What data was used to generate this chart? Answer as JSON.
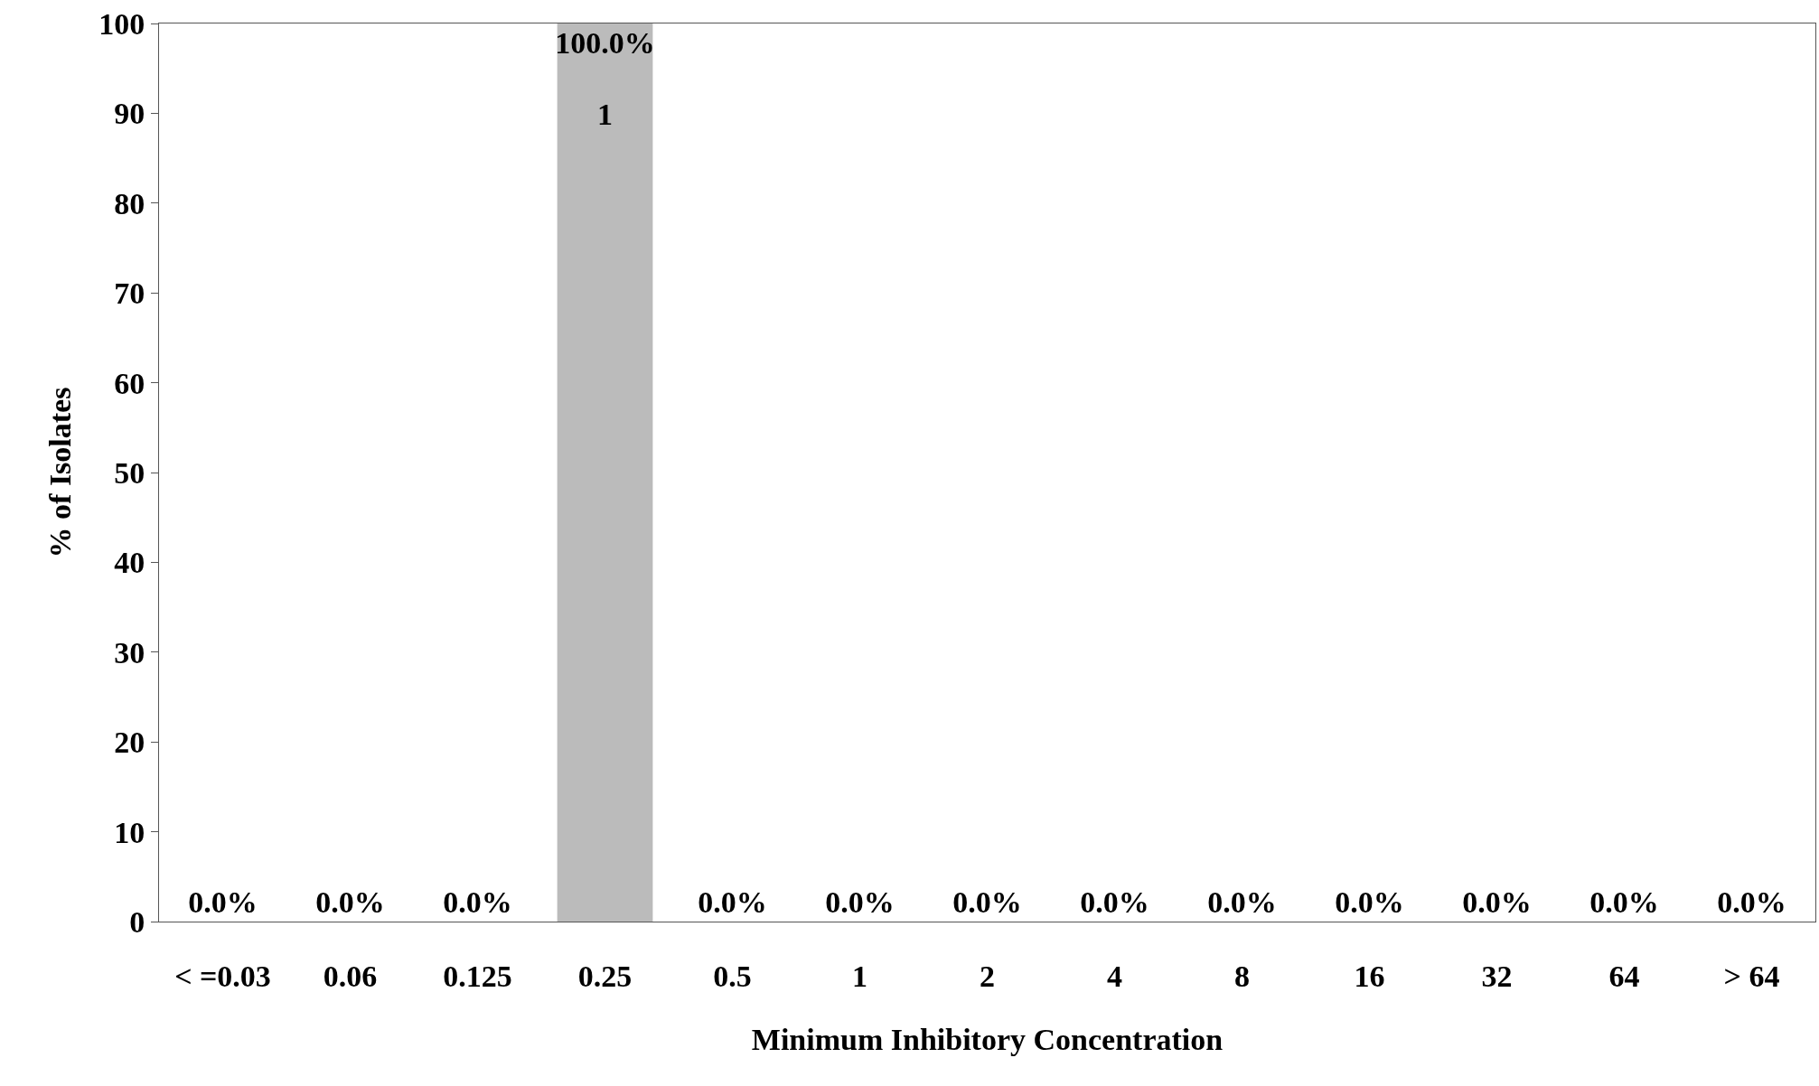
{
  "chart_data": {
    "type": "bar",
    "xlabel": "Minimum Inhibitory Concentration",
    "ylabel": "% of Isolates",
    "categories": [
      "< =0.03",
      "0.06",
      "0.125",
      "0.25",
      "0.5",
      "1",
      "2",
      "4",
      "8",
      "16",
      "32",
      "64",
      "> 64"
    ],
    "values": [
      0,
      0,
      0,
      100,
      0,
      0,
      0,
      0,
      0,
      0,
      0,
      0,
      0
    ],
    "value_labels": [
      "0.0%",
      "0.0%",
      "0.0%",
      "100.0%",
      "0.0%",
      "0.0%",
      "0.0%",
      "0.0%",
      "0.0%",
      "0.0%",
      "0.0%",
      "0.0%",
      "0.0%"
    ],
    "color": "#bbbbbb",
    "ylim": [
      0,
      100
    ],
    "yticks": [
      0,
      10,
      20,
      30,
      40,
      50,
      60,
      70,
      80,
      90,
      100
    ],
    "grid": false,
    "annotations": [
      "1"
    ]
  }
}
